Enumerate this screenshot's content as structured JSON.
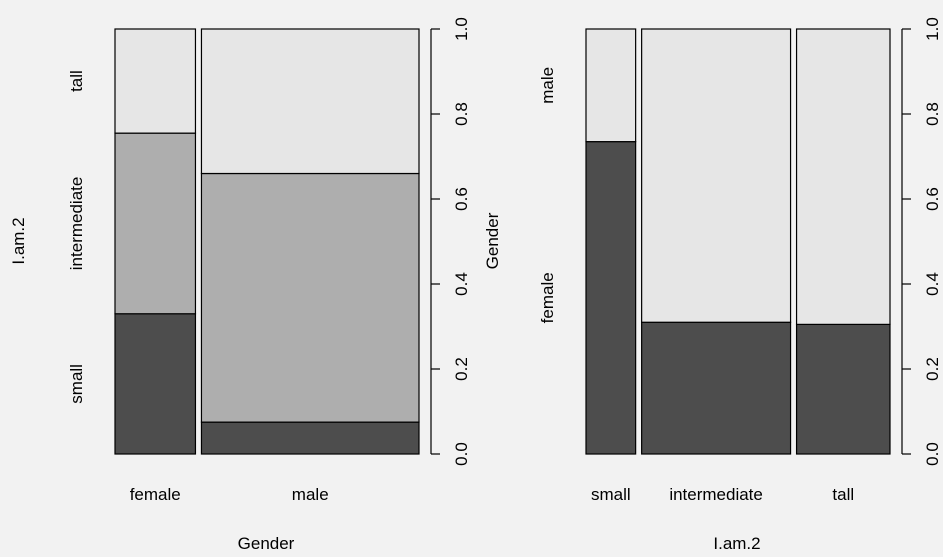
{
  "chart_data": [
    {
      "type": "spineplot",
      "xlabel": "Gender",
      "ylabel": "I.am.2",
      "right_axis_label": "Gender",
      "categories": [
        "female",
        "male"
      ],
      "widths": [
        0.27,
        0.73
      ],
      "levels": [
        "small",
        "intermediate",
        "tall"
      ],
      "series": [
        {
          "name": "small",
          "values": [
            0.33,
            0.075
          ]
        },
        {
          "name": "intermediate",
          "values": [
            0.425,
            0.585
          ]
        },
        {
          "name": "tall",
          "values": [
            0.245,
            0.34
          ]
        }
      ],
      "colors": [
        "#4d4d4d",
        "#aeaeae",
        "#e6e6e6"
      ],
      "right_ticks": [
        "0.0",
        "0.2",
        "0.4",
        "0.6",
        "0.8",
        "1.0"
      ],
      "ylim": [
        0,
        1
      ]
    },
    {
      "type": "spineplot",
      "xlabel": "I.am.2",
      "categories": [
        "small",
        "intermediate",
        "tall"
      ],
      "widths": [
        0.17,
        0.51,
        0.32
      ],
      "levels": [
        "female",
        "male"
      ],
      "series": [
        {
          "name": "female",
          "values": [
            0.735,
            0.31,
            0.305
          ]
        },
        {
          "name": "male",
          "values": [
            0.265,
            0.69,
            0.695
          ]
        }
      ],
      "colors": [
        "#4d4d4d",
        "#e6e6e6"
      ],
      "right_ticks": [
        "0.0",
        "0.2",
        "0.4",
        "0.6",
        "0.8",
        "1.0"
      ],
      "ylim": [
        0,
        1
      ]
    }
  ]
}
